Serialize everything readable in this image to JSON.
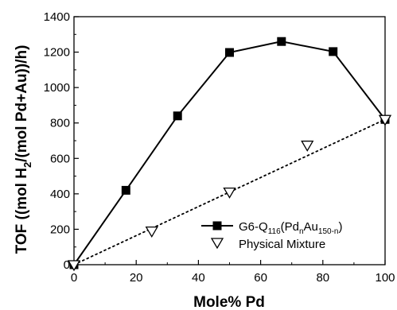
{
  "chart_data": {
    "type": "scatter",
    "xlabel": "Mole% Pd",
    "ylabel_parts": {
      "before": "TOF ((mol H",
      "sub": "2",
      "after": "/(mol Pd+Au))/h)"
    },
    "xlim": [
      0,
      100
    ],
    "ylim": [
      0,
      1400
    ],
    "xticks": [
      0,
      20,
      40,
      60,
      80,
      100
    ],
    "yticks": [
      0,
      200,
      400,
      600,
      800,
      1000,
      1200,
      1400
    ],
    "grid": false,
    "legend_position": "lower-right",
    "series": [
      {
        "name_parts": {
          "a": "G6-Q",
          "a_sub": "116",
          "b": "(Pd",
          "b_sub": "n",
          "c": "Au",
          "c_sub": "150-n",
          "d": ")"
        },
        "marker": "filled-square",
        "line": "solid",
        "color": "#000000",
        "x": [
          0,
          16.7,
          33.3,
          50,
          66.7,
          83.3,
          100
        ],
        "y": [
          0,
          420,
          840,
          1198,
          1260,
          1203,
          820
        ]
      },
      {
        "name": "Physical Mixture",
        "marker": "open-triangle-down",
        "line": "none",
        "color": "#000000",
        "x": [
          0,
          25,
          50,
          75,
          100
        ],
        "y": [
          0,
          190,
          410,
          675,
          820
        ]
      }
    ],
    "reference_line": {
      "style": "dotted",
      "x": [
        0,
        100
      ],
      "y": [
        0,
        820
      ]
    }
  }
}
